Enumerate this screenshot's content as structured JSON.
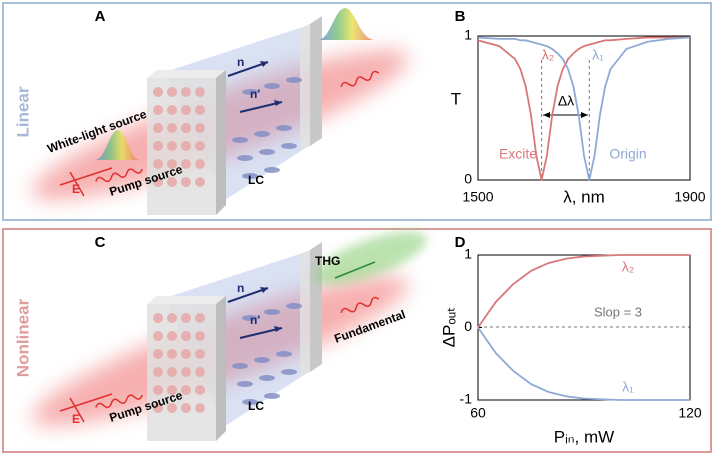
{
  "panels": {
    "a": {
      "label": "A",
      "side": "Linear",
      "n": "n",
      "n2": "n'",
      "lc": "LC",
      "source": "White-light source",
      "pump": "Pump source",
      "e": "E"
    },
    "b": {
      "label": "B"
    },
    "c": {
      "label": "C",
      "side": "Nonlinear",
      "n": "n",
      "n2": "n'",
      "lc": "LC",
      "thg": "THG",
      "fundamental": "Fundamental",
      "pump": "Pump source",
      "e": "E"
    },
    "d": {
      "label": "D"
    }
  },
  "chart_data": [
    {
      "type": "line",
      "xlabel": "λ, nm",
      "ylabel": "T",
      "x": [
        1500,
        1540,
        1570,
        1580,
        1590,
        1600,
        1610,
        1620,
        1630,
        1640,
        1650,
        1660,
        1670,
        1680,
        1690,
        1700,
        1710,
        1720,
        1730,
        1740,
        1750,
        1780,
        1820,
        1860,
        1900
      ],
      "series": [
        {
          "name": "Excite",
          "color": "#d9787a",
          "values": [
            0.97,
            0.93,
            0.84,
            0.77,
            0.65,
            0.45,
            0.17,
            0,
            0.17,
            0.45,
            0.65,
            0.77,
            0.84,
            0.88,
            0.91,
            0.93,
            0.94,
            0.95,
            0.96,
            0.97,
            0.97,
            0.98,
            0.99,
            0.99,
            0.99
          ]
        },
        {
          "name": "Origin",
          "color": "#8fa9d6",
          "values": [
            0.99,
            0.98,
            0.98,
            0.97,
            0.97,
            0.96,
            0.95,
            0.94,
            0.93,
            0.91,
            0.88,
            0.84,
            0.77,
            0.65,
            0.45,
            0.17,
            0,
            0.17,
            0.45,
            0.65,
            0.77,
            0.91,
            0.96,
            0.98,
            0.99
          ]
        }
      ],
      "annotations": [
        "λ₂",
        "λ₁",
        "Δλ"
      ],
      "xlim": [
        1500,
        1900
      ],
      "xticks": [
        1500,
        1900
      ],
      "ylim": [
        0,
        1
      ],
      "yticks": [
        0,
        1
      ]
    },
    {
      "type": "line",
      "xlabel": "Pᵢₙ, mW",
      "ylabel": "ΔPₒᵤₜ",
      "x": [
        60,
        65,
        70,
        75,
        80,
        85,
        90,
        95,
        100,
        110,
        120
      ],
      "series": [
        {
          "name": "λ₂",
          "color": "#d9787a",
          "values": [
            0,
            0.35,
            0.6,
            0.78,
            0.89,
            0.95,
            0.98,
            0.99,
            1,
            1,
            1
          ]
        },
        {
          "name": "λ₁",
          "color": "#8fa9d6",
          "values": [
            0,
            -0.35,
            -0.6,
            -0.78,
            -0.89,
            -0.95,
            -0.98,
            -0.99,
            -1,
            -1,
            -1
          ]
        }
      ],
      "annotations": [
        "Slop = 3"
      ],
      "xlim": [
        60,
        120
      ],
      "xticks": [
        60,
        120
      ],
      "ylim": [
        -1,
        1
      ],
      "yticks": [
        -1,
        0,
        1
      ]
    }
  ]
}
